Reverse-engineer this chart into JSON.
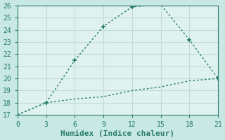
{
  "xlabel": "Humidex (Indice chaleur)",
  "x": [
    0,
    3,
    6,
    9,
    12,
    15,
    18,
    21
  ],
  "line1_y": [
    17,
    18,
    21.5,
    24.3,
    25.9,
    26.1,
    23.2,
    20.0
  ],
  "line2_y": [
    17,
    18,
    18.3,
    18.5,
    19.0,
    19.3,
    19.8,
    20.0
  ],
  "line_color": "#2a7d6e",
  "plot_bg_color": "#dff2ef",
  "outer_bg_color": "#c8e8e3",
  "grid_color": "#c0dcd8",
  "spine_color": "#2a7d6e",
  "xlim": [
    0,
    21
  ],
  "ylim": [
    17,
    26
  ],
  "xticks": [
    0,
    3,
    6,
    9,
    12,
    15,
    18,
    21
  ],
  "yticks": [
    17,
    18,
    19,
    20,
    21,
    22,
    23,
    24,
    25,
    26
  ],
  "tick_fontsize": 7,
  "xlabel_fontsize": 8
}
